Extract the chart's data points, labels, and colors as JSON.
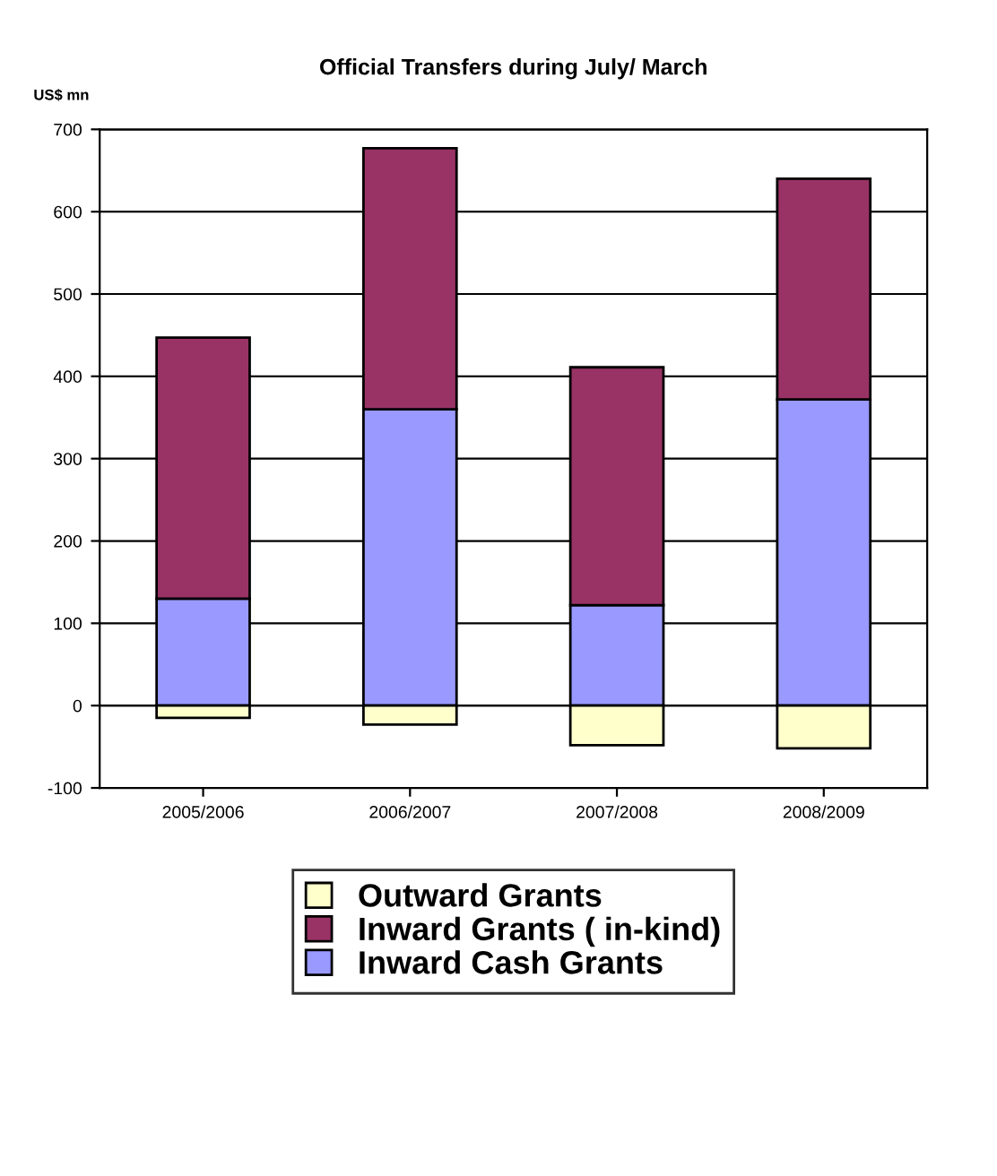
{
  "chart_data": {
    "type": "bar",
    "title": "Official Transfers during July/ March",
    "ylabel": "US$ mn",
    "stacked": true,
    "categories": [
      "2005/2006",
      "2006/2007",
      "2007/2008",
      "2008/2009"
    ],
    "series": [
      {
        "name": "Inward Cash Grants",
        "color": "#9999ff",
        "values": [
          130,
          360,
          122,
          372
        ]
      },
      {
        "name": "Inward Grants ( in-kind)",
        "color": "#993366",
        "values": [
          317,
          317,
          289,
          268
        ]
      },
      {
        "name": "Outward Grants",
        "color": "#ffffcc",
        "values": [
          -15,
          -23,
          -48,
          -52
        ]
      }
    ],
    "ylim": [
      -100,
      700
    ],
    "yticks": [
      -100,
      0,
      100,
      200,
      300,
      400,
      500,
      600,
      700
    ],
    "grid": "y",
    "legend": "bottom"
  }
}
